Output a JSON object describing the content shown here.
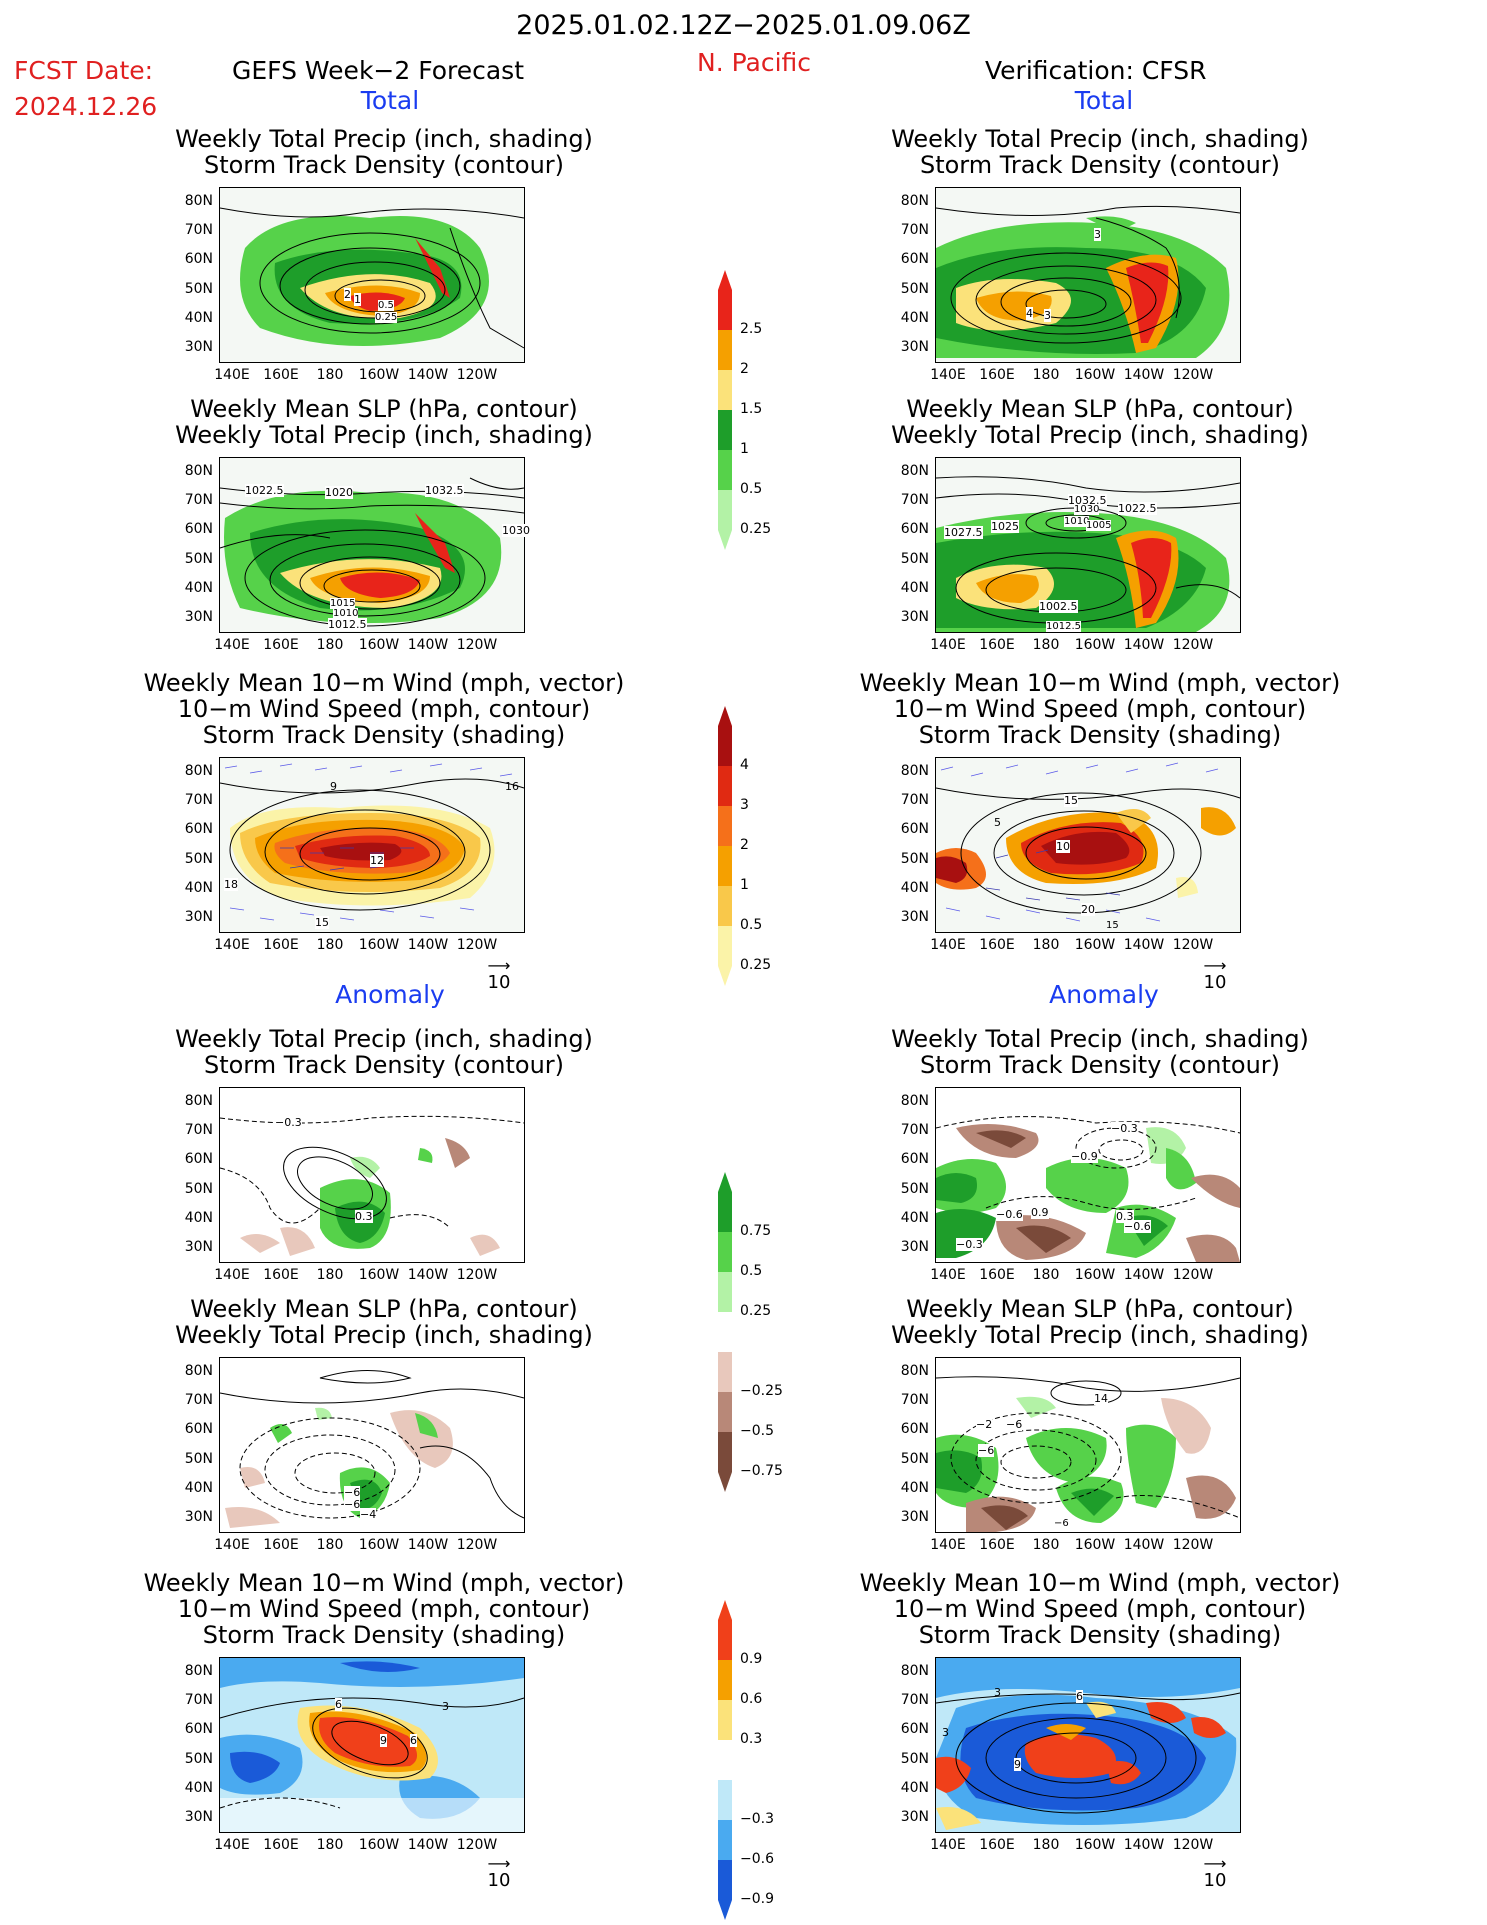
{
  "header": {
    "date_range": "2025.01.02.12Z−2025.01.09.06Z",
    "fcst_label": "FCST Date:",
    "fcst_date": "2024.12.26",
    "left_title": "GEFS Week−2 Forecast",
    "region": "N. Pacific",
    "right_title": "Verification: CFSR"
  },
  "sections": {
    "total": "Total",
    "anomaly": "Anomaly"
  },
  "titles": {
    "precip_track": [
      "Weekly Total Precip (inch, shading)",
      "Storm Track Density (contour)"
    ],
    "slp_precip": [
      "Weekly Mean SLP (hPa, contour)",
      "Weekly Total Precip (inch, shading)"
    ],
    "wind_track": [
      "Weekly Mean 10−m Wind (mph, vector)",
      "10−m Wind Speed (mph, contour)",
      "Storm Track Density (shading)"
    ]
  },
  "axes": {
    "lat": [
      "80N",
      "70N",
      "60N",
      "50N",
      "40N",
      "30N"
    ],
    "lon": [
      "140E",
      "160E",
      "180",
      "160W",
      "140W",
      "120W"
    ]
  },
  "vector_ref": "10",
  "contour_labels": {
    "fcst_precip_total": [
      "2",
      "1",
      "0.5",
      "0.25"
    ],
    "obs_precip_total": [
      "3",
      "4",
      "3"
    ],
    "fcst_slp_total": [
      "1022.5",
      "1020",
      "1032.5",
      "1030",
      "1012.5",
      "1015",
      "1010"
    ],
    "obs_slp_total": [
      "1032.5",
      "1030",
      "1025",
      "1027.5",
      "1022.5",
      "1010",
      "1005",
      "1002.5",
      "1012.5"
    ],
    "fcst_wind_total": [
      "9",
      "18",
      "12",
      "15",
      "16"
    ],
    "obs_wind_total": [
      "15",
      "5",
      "10",
      "20",
      "15"
    ],
    "fcst_precip_anom": [
      "−0.3",
      "0.3"
    ],
    "obs_precip_anom": [
      "−0.3",
      "−0.9",
      "−0.6",
      "0.9",
      "0.3",
      "−0.6",
      "−0.3"
    ],
    "fcst_slp_anom": [
      "−6",
      "−6",
      "−4"
    ],
    "obs_slp_anom": [
      "14",
      "−2",
      "−6",
      "−6",
      "−6"
    ],
    "fcst_wind_anom": [
      "6",
      "9",
      "6",
      "3"
    ],
    "obs_wind_anom": [
      "3",
      "6",
      "3",
      "9"
    ]
  },
  "colorbars": {
    "precip_total": {
      "labels": [
        "2.5",
        "2",
        "1.5",
        "1",
        "0.5",
        "0.25"
      ],
      "colors": [
        "#e8241a",
        "#f5a000",
        "#fbe27a",
        "#1e9e2a",
        "#56d24a",
        "#b3f2a6"
      ]
    },
    "track_total": {
      "labels": [
        "4",
        "3",
        "2",
        "1",
        "0.5",
        "0.25"
      ],
      "colors": [
        "#a81010",
        "#e02a12",
        "#f5701a",
        "#f5a000",
        "#f9c84a",
        "#fbf3a8"
      ]
    },
    "precip_anom": {
      "labels": [
        "0.75",
        "0.5",
        "0.25",
        "−0.25",
        "−0.5",
        "−0.75"
      ],
      "colors": [
        "#1e9e2a",
        "#56d24a",
        "#b3f2a6",
        "#ffffff",
        "#e8c8bc",
        "#b88878",
        "#7a4a3a"
      ]
    },
    "track_anom": {
      "labels": [
        "0.9",
        "0.6",
        "0.3",
        "−0.3",
        "−0.6",
        "−0.9"
      ],
      "colors": [
        "#f0401a",
        "#f5a000",
        "#fbe27a",
        "#ffffff",
        "#bfe8f8",
        "#4aaaf0",
        "#1a5ad8"
      ]
    }
  },
  "colors": {
    "header_red": "#e02020",
    "section_blue": "#1a3cf0",
    "vector_blue": "#5a5ae8"
  }
}
